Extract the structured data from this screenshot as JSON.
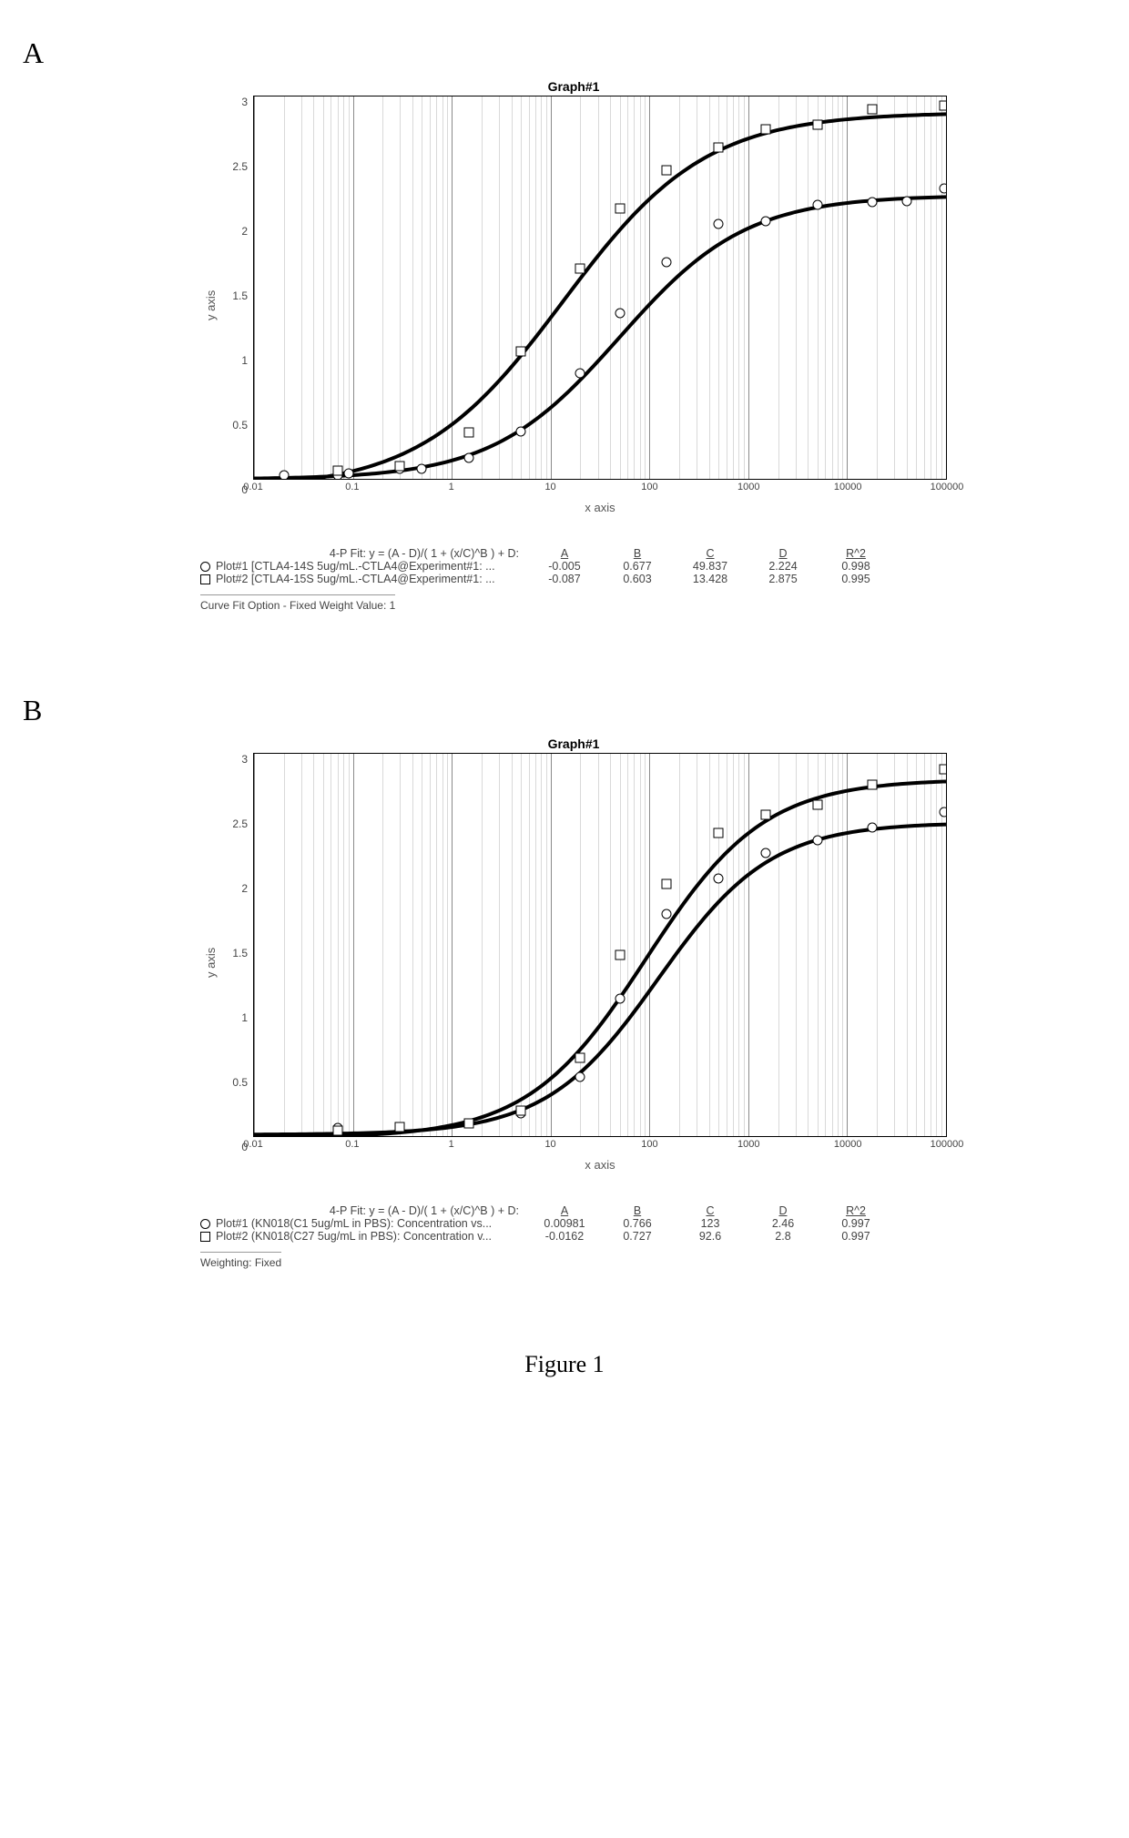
{
  "figure_caption": "Figure 1",
  "panels": [
    {
      "label": "A",
      "chart": {
        "type": "line-scatter-logx",
        "title": "Graph#1",
        "xlabel": "x axis",
        "ylabel": "y axis",
        "title_fontsize": 14,
        "label_fontsize": 13,
        "xscale": "log",
        "xlim": [
          0.01,
          100000
        ],
        "ylim": [
          0,
          3
        ],
        "ytick_step": 0.5,
        "yticks": [
          "3",
          "2.5",
          "2",
          "1.5",
          "1",
          "0.5",
          "0"
        ],
        "xticks": [
          {
            "value": 0.01,
            "label": "0.01"
          },
          {
            "value": 0.1,
            "label": "0.1"
          },
          {
            "value": 1,
            "label": "1"
          },
          {
            "value": 10,
            "label": "10"
          },
          {
            "value": 100,
            "label": "100"
          },
          {
            "value": 1000,
            "label": "1000"
          },
          {
            "value": 10000,
            "label": "10000"
          },
          {
            "value": 100000,
            "label": "100000"
          }
        ],
        "minor_grid_color": "#d9d9d9",
        "major_grid_color": "#8a8a8a",
        "background_color": "#ffffff",
        "curve_color": "#000000",
        "curve_width": 1.6,
        "marker_size": 9,
        "series": [
          {
            "id": "plot1",
            "marker": "circle",
            "fit": {
              "A": -0.005,
              "B": 0.677,
              "C": 49.837,
              "D": 2.224
            },
            "points": [
              {
                "x": 0.02,
                "y": 0.03
              },
              {
                "x": 0.07,
                "y": 0.03
              },
              {
                "x": 0.09,
                "y": 0.04
              },
              {
                "x": 0.3,
                "y": 0.08
              },
              {
                "x": 0.5,
                "y": 0.08
              },
              {
                "x": 1.5,
                "y": 0.16
              },
              {
                "x": 5,
                "y": 0.37
              },
              {
                "x": 20,
                "y": 0.83
              },
              {
                "x": 50,
                "y": 1.3
              },
              {
                "x": 150,
                "y": 1.7
              },
              {
                "x": 500,
                "y": 2.0
              },
              {
                "x": 1500,
                "y": 2.02
              },
              {
                "x": 5000,
                "y": 2.15
              },
              {
                "x": 18000,
                "y": 2.17
              },
              {
                "x": 40000,
                "y": 2.18
              },
              {
                "x": 95000,
                "y": 2.28
              }
            ]
          },
          {
            "id": "plot2",
            "marker": "square",
            "fit": {
              "A": -0.087,
              "B": 0.603,
              "C": 13.428,
              "D": 2.875
            },
            "points": [
              {
                "x": 0.07,
                "y": 0.06
              },
              {
                "x": 0.3,
                "y": 0.1
              },
              {
                "x": 1.5,
                "y": 0.36
              },
              {
                "x": 5,
                "y": 1.0
              },
              {
                "x": 20,
                "y": 1.65
              },
              {
                "x": 50,
                "y": 2.12
              },
              {
                "x": 150,
                "y": 2.42
              },
              {
                "x": 500,
                "y": 2.6
              },
              {
                "x": 1500,
                "y": 2.74
              },
              {
                "x": 5000,
                "y": 2.78
              },
              {
                "x": 18000,
                "y": 2.9
              },
              {
                "x": 95000,
                "y": 2.93
              }
            ]
          }
        ]
      },
      "fit_formula": "4-P Fit: y = (A - D)/( 1 + (x/C)^B ) + D:",
      "fit_columns": [
        "A",
        "B",
        "C",
        "D",
        "R^2"
      ],
      "fit_rows": [
        {
          "marker": "circle",
          "label": "Plot#1 [CTLA4-14S 5ug/mL.-CTLA4@Experiment#1: ...",
          "A": "-0.005",
          "B": "0.677",
          "C": "49.837",
          "D": "2.224",
          "R2": "0.998"
        },
        {
          "marker": "square",
          "label": "Plot#2 [CTLA4-15S 5ug/mL.-CTLA4@Experiment#1: ...",
          "A": "-0.087",
          "B": "0.603",
          "C": "13.428",
          "D": "2.875",
          "R2": "0.995"
        }
      ],
      "fit_note": "Curve Fit Option - Fixed Weight Value:  1"
    },
    {
      "label": "B",
      "chart": {
        "type": "line-scatter-logx",
        "title": "Graph#1",
        "xlabel": "x axis",
        "ylabel": "y axis",
        "title_fontsize": 14,
        "label_fontsize": 13,
        "xscale": "log",
        "xlim": [
          0.01,
          100000
        ],
        "ylim": [
          0,
          3
        ],
        "ytick_step": 0.5,
        "yticks": [
          "3",
          "2.5",
          "2",
          "1.5",
          "1",
          "0.5",
          "0"
        ],
        "xticks": [
          {
            "value": 0.01,
            "label": "0.01"
          },
          {
            "value": 0.1,
            "label": "0.1"
          },
          {
            "value": 1,
            "label": "1"
          },
          {
            "value": 10,
            "label": "10"
          },
          {
            "value": 100,
            "label": "100"
          },
          {
            "value": 1000,
            "label": "1000"
          },
          {
            "value": 10000,
            "label": "10000"
          },
          {
            "value": 100000,
            "label": "100000"
          }
        ],
        "minor_grid_color": "#d9d9d9",
        "major_grid_color": "#8a8a8a",
        "background_color": "#ffffff",
        "curve_color": "#000000",
        "curve_width": 1.6,
        "marker_size": 9,
        "series": [
          {
            "id": "plot1",
            "marker": "circle",
            "fit": {
              "A": 0.00981,
              "B": 0.766,
              "C": 123,
              "D": 2.46
            },
            "points": [
              {
                "x": 0.07,
                "y": 0.06
              },
              {
                "x": 0.3,
                "y": 0.06
              },
              {
                "x": 1.5,
                "y": 0.1
              },
              {
                "x": 5,
                "y": 0.18
              },
              {
                "x": 20,
                "y": 0.46
              },
              {
                "x": 50,
                "y": 1.08
              },
              {
                "x": 150,
                "y": 1.74
              },
              {
                "x": 500,
                "y": 2.02
              },
              {
                "x": 1500,
                "y": 2.22
              },
              {
                "x": 5000,
                "y": 2.32
              },
              {
                "x": 18000,
                "y": 2.42
              },
              {
                "x": 95000,
                "y": 2.54
              }
            ]
          },
          {
            "id": "plot2",
            "marker": "square",
            "fit": {
              "A": -0.0162,
              "B": 0.727,
              "C": 92.6,
              "D": 2.8
            },
            "points": [
              {
                "x": 0.07,
                "y": 0.04
              },
              {
                "x": 0.3,
                "y": 0.07
              },
              {
                "x": 1.5,
                "y": 0.1
              },
              {
                "x": 5,
                "y": 0.2
              },
              {
                "x": 20,
                "y": 0.61
              },
              {
                "x": 50,
                "y": 1.42
              },
              {
                "x": 150,
                "y": 1.98
              },
              {
                "x": 500,
                "y": 2.38
              },
              {
                "x": 1500,
                "y": 2.52
              },
              {
                "x": 5000,
                "y": 2.6
              },
              {
                "x": 18000,
                "y": 2.76
              },
              {
                "x": 95000,
                "y": 2.88
              }
            ]
          }
        ]
      },
      "fit_formula": "4-P Fit: y = (A - D)/( 1 + (x/C)^B ) + D:",
      "fit_columns": [
        "A",
        "B",
        "C",
        "D",
        "R^2"
      ],
      "fit_rows": [
        {
          "marker": "circle",
          "label": "Plot#1 (KN018(C1 5ug/mL in PBS): Concentration vs...",
          "A": "0.00981",
          "B": "0.766",
          "C": "123",
          "D": "2.46",
          "R2": "0.997"
        },
        {
          "marker": "square",
          "label": "Plot#2 (KN018(C27 5ug/mL in PBS): Concentration v...",
          "A": "-0.0162",
          "B": "0.727",
          "C": "92.6",
          "D": "2.8",
          "R2": "0.997"
        }
      ],
      "fit_note": "Weighting: Fixed"
    }
  ]
}
